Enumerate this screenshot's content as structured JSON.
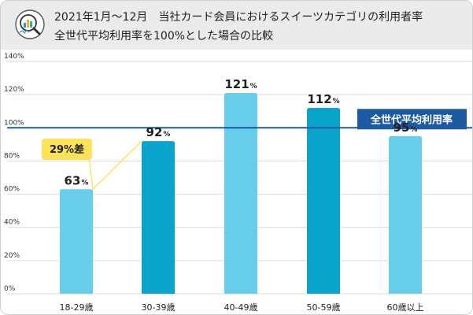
{
  "header": {
    "title_line1": "2021年1月〜12月　当社カード会員におけるスイーツカテゴリの利用者率",
    "title_line2": "全世代平均利用率を100%とした場合の比較"
  },
  "icon": "chart-magnifier-icon",
  "colors": {
    "bar_light": "#67cde8",
    "bar_dark": "#0aa3cc",
    "avg_line": "#1e5aa0",
    "avg_badge": "#1e5aa0",
    "diff_badge": "#fde25a",
    "grid": "#d9d9d9",
    "header_bg": "#ebebeb"
  },
  "chart_data": {
    "type": "bar",
    "categories": [
      "18-29歳",
      "30-39歳",
      "40-49歳",
      "50-59歳",
      "60歳以上"
    ],
    "values": [
      63,
      92,
      121,
      112,
      95
    ],
    "bar_colors": [
      "light",
      "dark",
      "light",
      "dark",
      "light"
    ],
    "value_unit": "%",
    "ylim": [
      0,
      140
    ],
    "yticks": [
      "0%",
      "20%",
      "40%",
      "60%",
      "80%",
      "100%",
      "120%",
      "140%"
    ],
    "ytick_values": [
      0,
      20,
      40,
      60,
      80,
      100,
      120,
      140
    ],
    "grid": true,
    "reference_line": {
      "value": 100,
      "label": "全世代平均利用率"
    },
    "annotation": {
      "label": "29%差",
      "from_category": "18-29歳",
      "to_category": "30-39歳"
    }
  }
}
